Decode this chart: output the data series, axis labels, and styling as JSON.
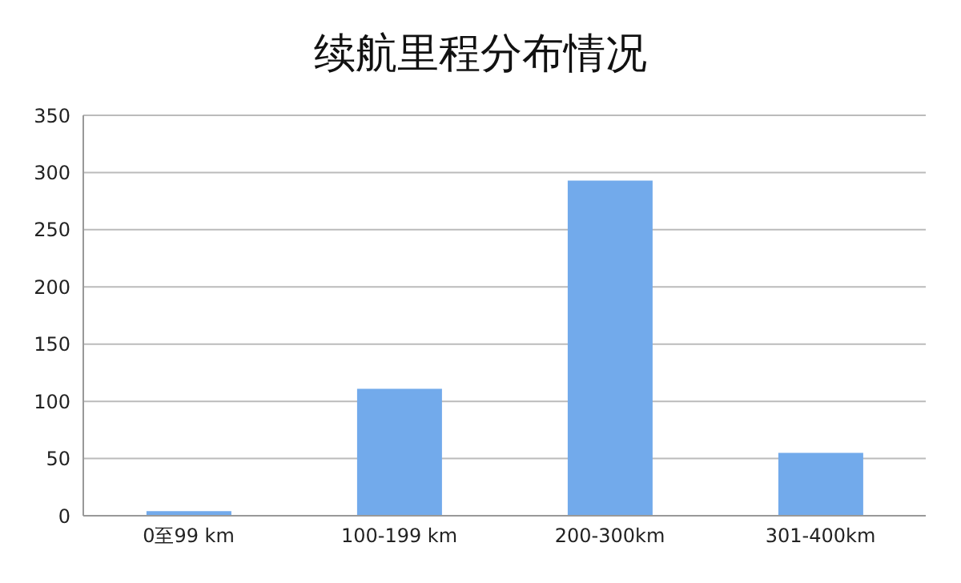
{
  "chart_data": {
    "type": "bar",
    "title": "续航里程分布情况",
    "categories": [
      "0至99 km",
      "100-199 km",
      "200-300km",
      "301-400km"
    ],
    "values": [
      4,
      111,
      293,
      55
    ],
    "color": "#72aaeb",
    "ylim": [
      0,
      350
    ],
    "yticks": [
      0,
      50,
      100,
      150,
      200,
      250,
      300,
      350
    ],
    "grid": "y"
  }
}
